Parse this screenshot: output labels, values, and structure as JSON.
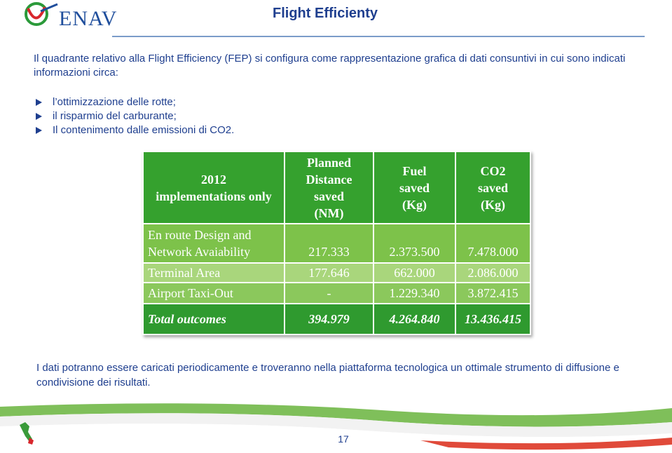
{
  "header": {
    "logo": "ENAV",
    "title": "Flight Efficienty"
  },
  "intro": "Il quadrante relativo alla Flight Efficiency (FEP) si configura come rappresentazione grafica di dati consuntivi in cui sono indicati informazioni circa:",
  "bullets": [
    "l’ottimizzazione delle rotte;",
    "il risparmio del carburante;",
    "Il contenimento dalle emissioni di CO2."
  ],
  "table": {
    "header": [
      "2012\nimplementations only",
      "Planned\nDistance\nsaved\n(NM)",
      "Fuel\nsaved\n(Kg)",
      "CO2\nsaved\n(Kg)"
    ],
    "rows": [
      [
        "En route Design and\nNetwork  Avaiability",
        "217.333",
        "2.373.500",
        "7.478.000"
      ],
      [
        "Terminal Area",
        "177.646",
        "662.000",
        "2.086.000"
      ],
      [
        "Airport Taxi-Out",
        "-",
        "1.229.340",
        "3.872.415"
      ]
    ],
    "total": [
      "Total outcomes",
      "394.979",
      "4.264.840",
      "13.436.415"
    ]
  },
  "footer_text": "I dati potranno essere caricati periodicamente e troveranno nella piattaforma tecnologica un ottimale strumento di diffusione e condivisione dei risultati.",
  "page_number": "17"
}
